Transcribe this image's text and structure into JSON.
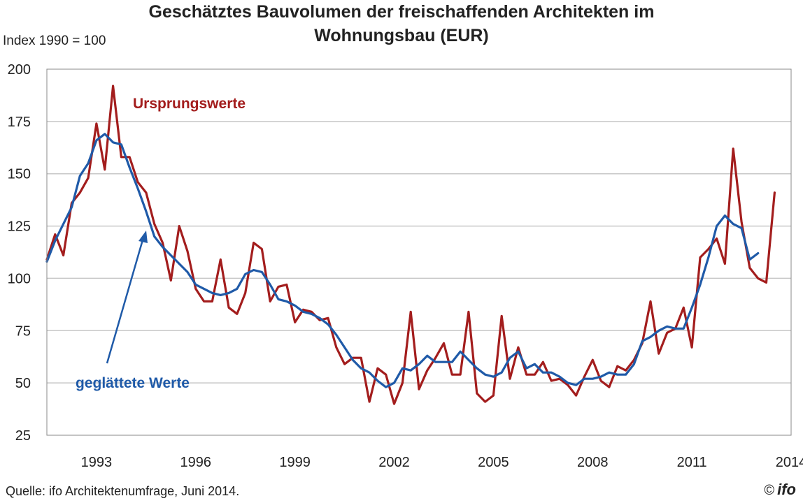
{
  "header": {
    "title": "Geschätztes Bauvolumen der freischaffenden Architekten im\nWohnungsbau (EUR)",
    "index_note": "Index 1990 = 100"
  },
  "footer": {
    "source": "Quelle: ifo Architektenumfrage, Juni  2014.",
    "copyright_symbol": "©",
    "logo_text": "ifo"
  },
  "colors": {
    "original": "#a31d1d",
    "smoothed": "#1f5aa8",
    "grid": "#c8c8c8"
  },
  "chart_data": {
    "type": "line",
    "title": "Geschätztes Bauvolumen der freischaffenden Architekten im Wohnungsbau (EUR)",
    "ylabel": "Index 1990 = 100",
    "xlabel": "",
    "xlim": [
      1991.5,
      2014
    ],
    "ylim": [
      25,
      200
    ],
    "x_ticks": [
      1993,
      1996,
      1999,
      2002,
      2005,
      2008,
      2011,
      2014
    ],
    "y_ticks": [
      25,
      50,
      75,
      100,
      125,
      150,
      175,
      200
    ],
    "grid": "horizontal",
    "annotations": [
      {
        "text": "Ursprungswerte",
        "series": "Ursprungswerte"
      },
      {
        "text": "geglättete Werte",
        "series": "geglättete Werte",
        "arrow": true
      }
    ],
    "series": [
      {
        "name": "Ursprungswerte",
        "start": 1991.5,
        "step": 0.25,
        "values": [
          109,
          121,
          111,
          136,
          141,
          148,
          174,
          152,
          192,
          158,
          158,
          146,
          141,
          126,
          117,
          99,
          125,
          113,
          95,
          89,
          89,
          109,
          86,
          83,
          93,
          117,
          114,
          89,
          96,
          97,
          79,
          85,
          84,
          80,
          81,
          67,
          59,
          62,
          62,
          41,
          57,
          54,
          40,
          50,
          84,
          47,
          56,
          62,
          69,
          54,
          54,
          84,
          45,
          41,
          44,
          82,
          52,
          67,
          54,
          54,
          60,
          51,
          52,
          49,
          44,
          53,
          61,
          51,
          48,
          58,
          56,
          61,
          69,
          89,
          64,
          74,
          76,
          86,
          67,
          110,
          114,
          119,
          107,
          162,
          127,
          105,
          100,
          98,
          141
        ]
      },
      {
        "name": "geglättete Werte",
        "start": 1991.5,
        "step": 0.25,
        "values": [
          108,
          118,
          126,
          134,
          149,
          155,
          166,
          169,
          165,
          164,
          153,
          143,
          132,
          120,
          115,
          111,
          107,
          103,
          97,
          95,
          93,
          92,
          93,
          95,
          102,
          104,
          103,
          97,
          90,
          89,
          87,
          84,
          83,
          81,
          78,
          73,
          67,
          61,
          57,
          55,
          51,
          48,
          50,
          57,
          56,
          59,
          63,
          60,
          60,
          60,
          65,
          61,
          57,
          54,
          53,
          55,
          62,
          65,
          57,
          59,
          55,
          55,
          53,
          50,
          49,
          52,
          52,
          53,
          55,
          54,
          54,
          59,
          70,
          72,
          75,
          77,
          76,
          76,
          86,
          97,
          110,
          125,
          130,
          126,
          124,
          109,
          112
        ]
      }
    ]
  }
}
